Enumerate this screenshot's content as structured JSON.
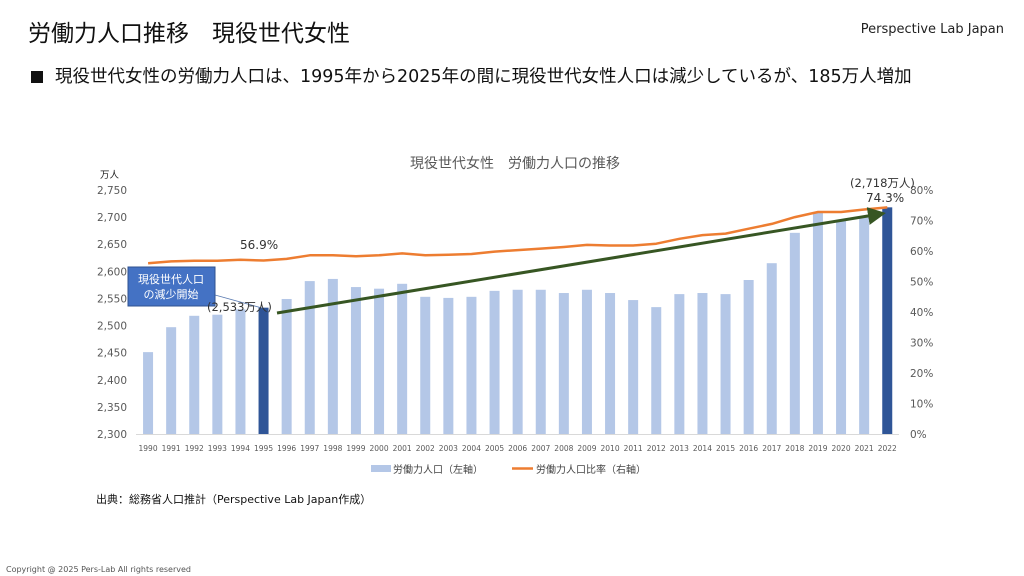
{
  "header": {
    "title": "労働力人口推移　現役世代女性",
    "brand": "Perspective Lab Japan"
  },
  "bullet": "現役世代女性の労働力人口は、1995年から2025年の間に現役世代女性人口は減少しているが、185万人増加",
  "source": "出典：総務省人口推計（Perspective Lab Japan作成）",
  "copyright": "Copyright @ 2025 Pers-Lab All rights reserved",
  "chart_data": {
    "type": "bar+line",
    "title": "現役世代女性　労働力人口の推移",
    "ylabel": "万人",
    "ylim": [
      2300,
      2750
    ],
    "yticks": [
      2300,
      2350,
      2400,
      2450,
      2500,
      2550,
      2600,
      2650,
      2700,
      2750
    ],
    "ytick_labels": [
      "2,300",
      "2,350",
      "2,400",
      "2,450",
      "2,500",
      "2,550",
      "2,600",
      "2,650",
      "2,700",
      "2,750"
    ],
    "y2lim": [
      0,
      80
    ],
    "y2ticks": [
      0,
      10,
      20,
      30,
      40,
      50,
      60,
      70,
      80
    ],
    "y2tick_labels": [
      "0%",
      "10%",
      "20%",
      "30%",
      "40%",
      "50%",
      "60%",
      "70%",
      "80%"
    ],
    "categories": [
      "1990",
      "1991",
      "1992",
      "1993",
      "1994",
      "1995",
      "1996",
      "1997",
      "1998",
      "1999",
      "2000",
      "2001",
      "2002",
      "2003",
      "2004",
      "2005",
      "2006",
      "2007",
      "2008",
      "2009",
      "2010",
      "2011",
      "2012",
      "2013",
      "2014",
      "2015",
      "2016",
      "2017",
      "2018",
      "2019",
      "2020",
      "2021",
      "2022"
    ],
    "series": [
      {
        "name": "労働力人口（左軸）",
        "type": "bar",
        "axis": "left",
        "color": "#b4c7e7",
        "highlight_color": "#2f5597",
        "highlight": [
          "1995",
          "2022"
        ],
        "values": [
          2451,
          2497,
          2518,
          2520,
          2530,
          2533,
          2549,
          2582,
          2586,
          2571,
          2568,
          2577,
          2553,
          2551,
          2553,
          2564,
          2566,
          2566,
          2560,
          2566,
          2560,
          2547,
          2534,
          2558,
          2560,
          2558,
          2584,
          2615,
          2671,
          2708,
          2693,
          2702,
          2718
        ]
      },
      {
        "name": "労働力人口比率（右軸）",
        "type": "line",
        "axis": "right",
        "color": "#ed7d31",
        "values": [
          56.0,
          56.6,
          56.8,
          56.8,
          57.1,
          56.9,
          57.4,
          58.6,
          58.6,
          58.3,
          58.6,
          59.2,
          58.6,
          58.8,
          59.0,
          59.8,
          60.3,
          60.8,
          61.3,
          62.0,
          61.8,
          61.8,
          62.4,
          64.0,
          65.2,
          65.7,
          67.3,
          68.9,
          71.1,
          72.8,
          72.8,
          73.6,
          74.3
        ]
      }
    ],
    "annotations": {
      "callout": "現役世代人口の減少開始",
      "callout_line1": "現役世代人口",
      "callout_line2": "の減少開始",
      "label_1995_value": "(2,533万人)",
      "label_1995_ratio": "56.9%",
      "label_2022_value": "(2,718万人)",
      "label_2022_ratio": "74.3%",
      "trend_arrow_color": "#375623"
    },
    "legend_position": "bottom",
    "grid": false
  }
}
